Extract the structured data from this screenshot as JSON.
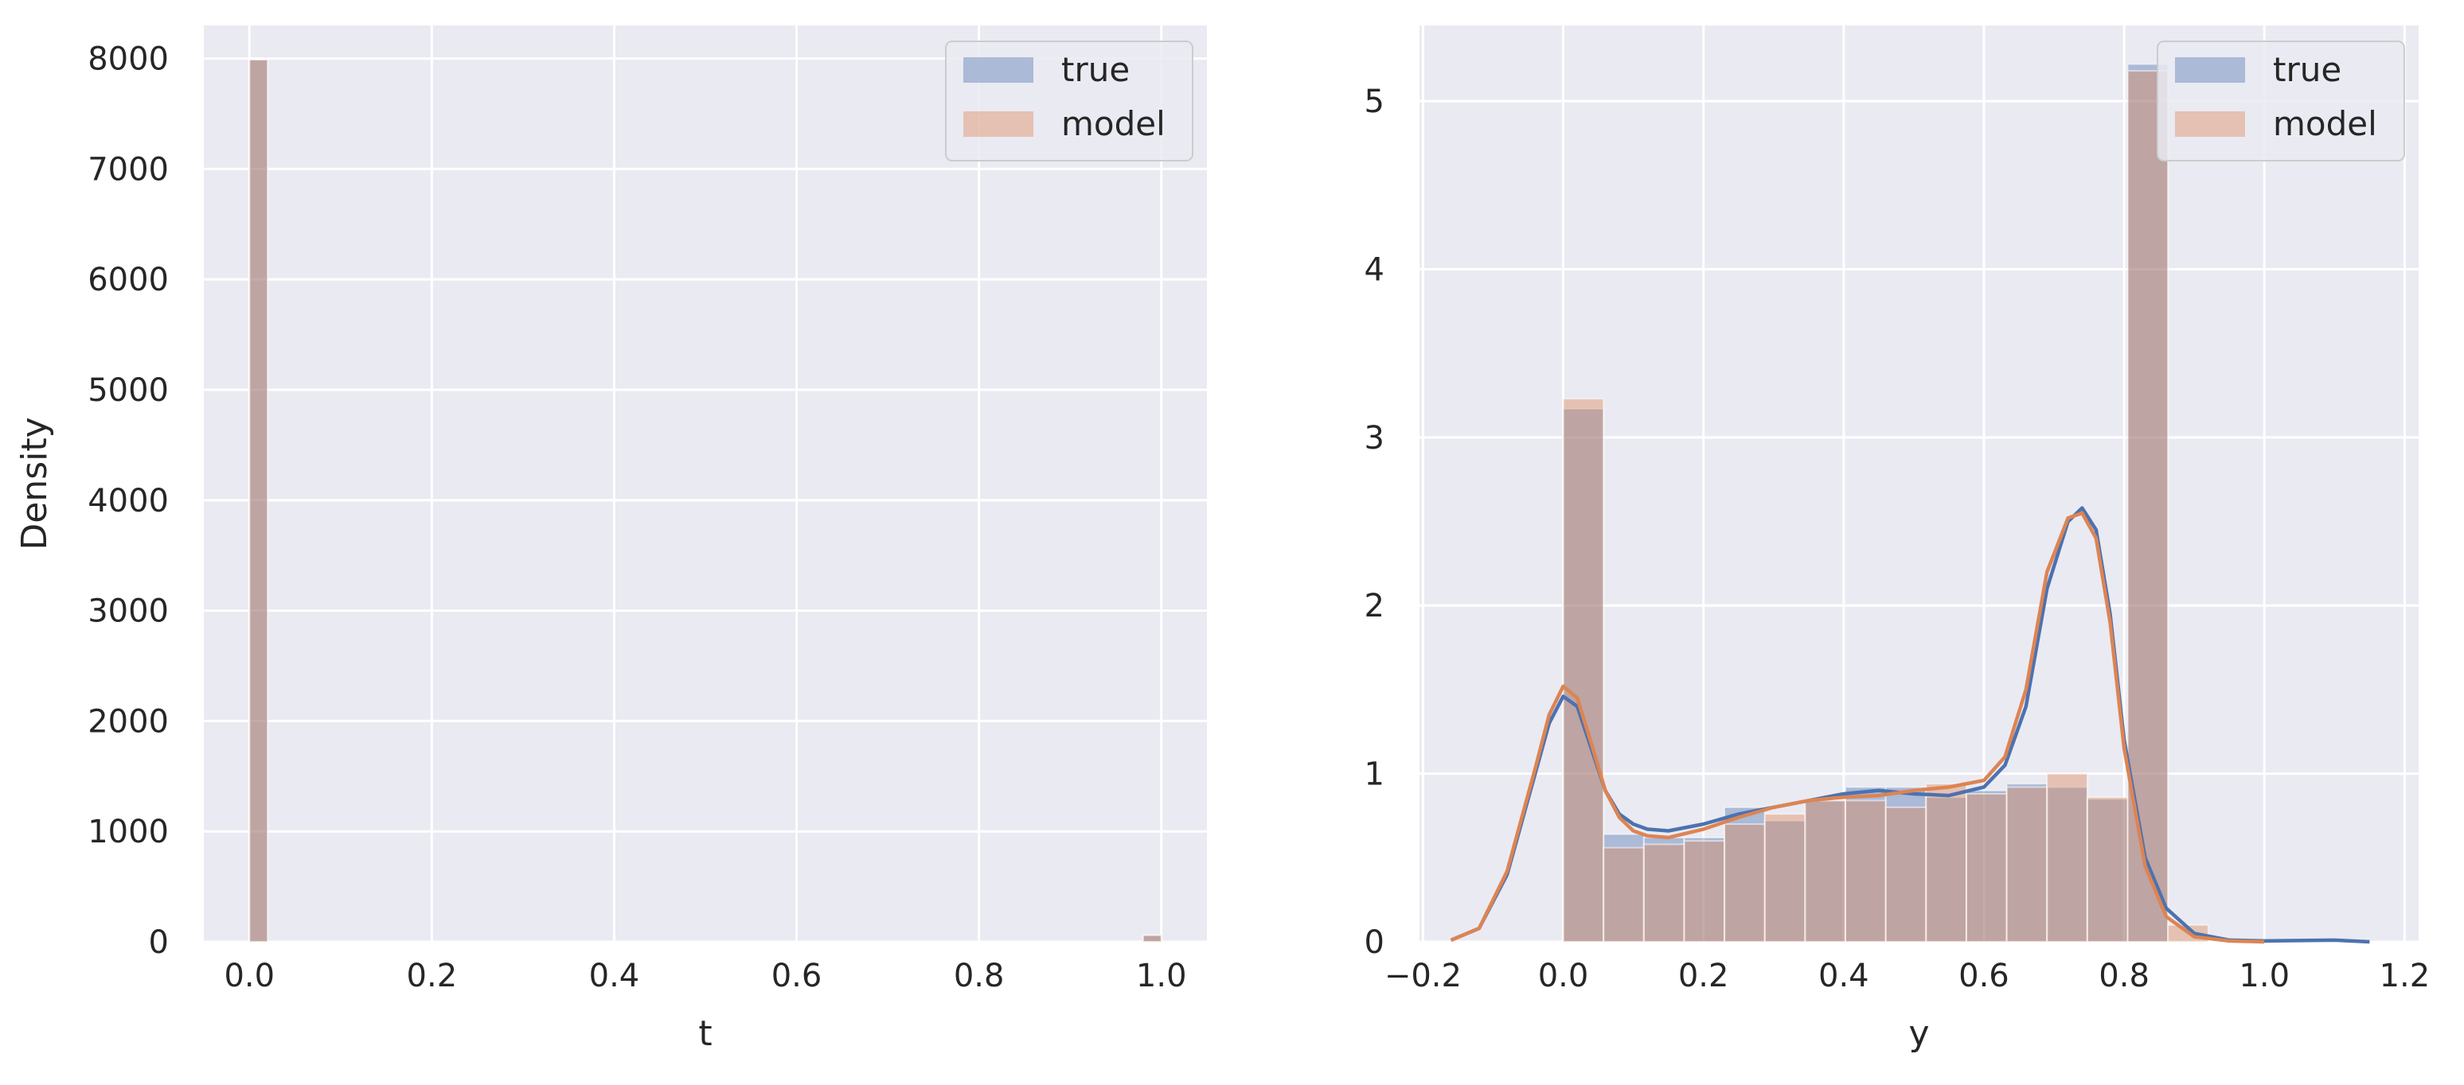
{
  "colors": {
    "background": "#eaeaf2",
    "grid": "#ffffff",
    "true_series": "#4c72b0",
    "model_series": "#dd8452"
  },
  "chart_data": [
    {
      "type": "bar",
      "xlabel": "t",
      "ylabel": "Density",
      "xlim": [
        -0.05,
        1.05
      ],
      "ylim": [
        0,
        8300
      ],
      "xticks": [
        {
          "value": 0.0,
          "label": "0.0"
        },
        {
          "value": 0.2,
          "label": "0.2"
        },
        {
          "value": 0.4,
          "label": "0.4"
        },
        {
          "value": 0.6,
          "label": "0.6"
        },
        {
          "value": 0.8,
          "label": "0.8"
        },
        {
          "value": 1.0,
          "label": "1.0"
        }
      ],
      "yticks": [
        {
          "value": 0,
          "label": "0"
        },
        {
          "value": 1000,
          "label": "1000"
        },
        {
          "value": 2000,
          "label": "2000"
        },
        {
          "value": 3000,
          "label": "3000"
        },
        {
          "value": 4000,
          "label": "4000"
        },
        {
          "value": 5000,
          "label": "5000"
        },
        {
          "value": 6000,
          "label": "6000"
        },
        {
          "value": 7000,
          "label": "7000"
        },
        {
          "value": 8000,
          "label": "8000"
        }
      ],
      "grid": true,
      "legend_position": "top-right",
      "series": [
        {
          "name": "true",
          "bins": [
            {
              "x0": 0.0,
              "x1": 0.02,
              "value": 7990
            },
            {
              "x0": 0.98,
              "x1": 1.0,
              "value": 60
            }
          ]
        },
        {
          "name": "model",
          "bins": [
            {
              "x0": 0.0,
              "x1": 0.02,
              "value": 7990
            },
            {
              "x0": 0.98,
              "x1": 1.0,
              "value": 60
            }
          ]
        }
      ]
    },
    {
      "type": "bar",
      "xlabel": "y",
      "ylabel": "",
      "xlim": [
        -0.205,
        1.22
      ],
      "ylim": [
        0,
        5.45
      ],
      "xticks": [
        {
          "value": -0.2,
          "label": "−0.2"
        },
        {
          "value": 0.0,
          "label": "0.0"
        },
        {
          "value": 0.2,
          "label": "0.2"
        },
        {
          "value": 0.4,
          "label": "0.4"
        },
        {
          "value": 0.6,
          "label": "0.6"
        },
        {
          "value": 0.8,
          "label": "0.8"
        },
        {
          "value": 1.0,
          "label": "1.0"
        },
        {
          "value": 1.2,
          "label": "1.2"
        }
      ],
      "yticks": [
        {
          "value": 0,
          "label": "0"
        },
        {
          "value": 1,
          "label": "1"
        },
        {
          "value": 2,
          "label": "2"
        },
        {
          "value": 3,
          "label": "3"
        },
        {
          "value": 4,
          "label": "4"
        },
        {
          "value": 5,
          "label": "5"
        }
      ],
      "grid": true,
      "legend_position": "top-right",
      "series": [
        {
          "name": "true",
          "bin_start": 0.0,
          "bin_width": 0.0575,
          "values": [
            3.17,
            0.64,
            0.62,
            0.62,
            0.8,
            0.72,
            0.84,
            0.92,
            0.92,
            0.86,
            0.9,
            0.94,
            0.92,
            0.85,
            5.22
          ]
        },
        {
          "name": "model",
          "bin_start": 0.0,
          "bin_width": 0.0575,
          "values": [
            3.23,
            0.56,
            0.58,
            0.6,
            0.7,
            0.76,
            0.84,
            0.84,
            0.8,
            0.94,
            0.88,
            0.92,
            1.0,
            0.86,
            5.18,
            0.1
          ]
        }
      ],
      "kde": [
        {
          "name": "true",
          "x": [
            -0.16,
            -0.12,
            -0.08,
            -0.04,
            -0.02,
            0.0,
            0.02,
            0.04,
            0.06,
            0.08,
            0.1,
            0.12,
            0.15,
            0.2,
            0.25,
            0.3,
            0.35,
            0.4,
            0.45,
            0.5,
            0.55,
            0.6,
            0.63,
            0.66,
            0.69,
            0.72,
            0.74,
            0.76,
            0.78,
            0.8,
            0.83,
            0.86,
            0.9,
            0.95,
            1.0,
            1.1,
            1.15
          ],
          "y": [
            0.01,
            0.08,
            0.4,
            1.0,
            1.3,
            1.46,
            1.4,
            1.15,
            0.9,
            0.76,
            0.7,
            0.67,
            0.66,
            0.7,
            0.76,
            0.8,
            0.84,
            0.88,
            0.9,
            0.88,
            0.87,
            0.92,
            1.05,
            1.4,
            2.1,
            2.5,
            2.58,
            2.45,
            1.95,
            1.2,
            0.5,
            0.2,
            0.05,
            0.01,
            0.005,
            0.01,
            0.0
          ]
        },
        {
          "name": "model",
          "x": [
            -0.16,
            -0.12,
            -0.08,
            -0.04,
            -0.02,
            0.0,
            0.02,
            0.04,
            0.06,
            0.08,
            0.1,
            0.12,
            0.15,
            0.2,
            0.25,
            0.3,
            0.35,
            0.4,
            0.45,
            0.5,
            0.55,
            0.6,
            0.63,
            0.66,
            0.69,
            0.72,
            0.74,
            0.76,
            0.78,
            0.8,
            0.83,
            0.86,
            0.9,
            0.95,
            1.0
          ],
          "y": [
            0.01,
            0.08,
            0.42,
            1.03,
            1.35,
            1.52,
            1.45,
            1.18,
            0.9,
            0.74,
            0.66,
            0.63,
            0.62,
            0.67,
            0.74,
            0.8,
            0.84,
            0.86,
            0.87,
            0.9,
            0.92,
            0.96,
            1.1,
            1.5,
            2.2,
            2.52,
            2.55,
            2.4,
            1.9,
            1.15,
            0.45,
            0.15,
            0.03,
            0.005,
            0.0
          ]
        }
      ]
    }
  ]
}
